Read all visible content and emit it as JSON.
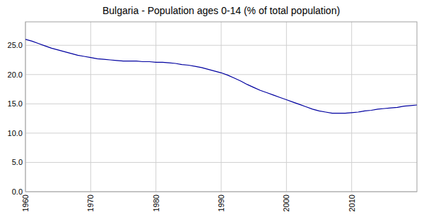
{
  "chart_data": {
    "type": "line",
    "title": "Bulgaria - Population ages 0-14 (% of total population)",
    "x": [
      1960,
      1961,
      1962,
      1963,
      1964,
      1965,
      1966,
      1967,
      1968,
      1969,
      1970,
      1971,
      1972,
      1973,
      1974,
      1975,
      1976,
      1977,
      1978,
      1979,
      1980,
      1981,
      1982,
      1983,
      1984,
      1985,
      1986,
      1987,
      1988,
      1989,
      1990,
      1991,
      1992,
      1993,
      1994,
      1995,
      1996,
      1997,
      1998,
      1999,
      2000,
      2001,
      2002,
      2003,
      2004,
      2005,
      2006,
      2007,
      2008,
      2009,
      2010,
      2011,
      2012,
      2013,
      2014,
      2015,
      2016,
      2017,
      2018,
      2019,
      2020
    ],
    "values": [
      26.0,
      25.7,
      25.3,
      24.9,
      24.5,
      24.2,
      23.9,
      23.6,
      23.3,
      23.1,
      22.9,
      22.7,
      22.6,
      22.5,
      22.4,
      22.3,
      22.3,
      22.3,
      22.2,
      22.2,
      22.1,
      22.1,
      22.0,
      21.9,
      21.7,
      21.6,
      21.4,
      21.2,
      20.9,
      20.6,
      20.3,
      19.9,
      19.4,
      18.9,
      18.3,
      17.8,
      17.3,
      16.9,
      16.5,
      16.1,
      15.7,
      15.3,
      14.9,
      14.5,
      14.1,
      13.8,
      13.6,
      13.4,
      13.4,
      13.4,
      13.5,
      13.6,
      13.8,
      13.9,
      14.1,
      14.2,
      14.3,
      14.4,
      14.6,
      14.7,
      14.8
    ],
    "color": "#0000a0",
    "xlim": [
      1960,
      2020
    ],
    "xticks": [
      1960,
      1970,
      1980,
      1990,
      2000,
      2010
    ],
    "ylim": [
      0,
      29
    ],
    "yticks": [
      {
        "value": 0,
        "label": "0.0"
      },
      {
        "value": 5,
        "label": "5.0"
      },
      {
        "value": 10,
        "label": "10.0"
      },
      {
        "value": 15,
        "label": "15.0"
      },
      {
        "value": 20,
        "label": "20.0"
      },
      {
        "value": 25,
        "label": "25.0"
      }
    ],
    "grid": true
  }
}
